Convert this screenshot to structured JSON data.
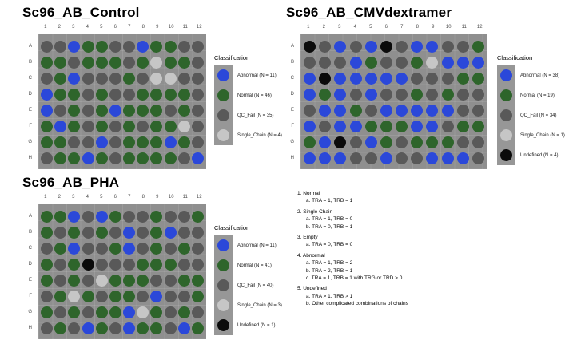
{
  "palette": {
    "abnormal": "#2b48d9",
    "normal": "#2e652b",
    "qc_fail": "#595959",
    "single_chain": "#c6c6c6",
    "undefined": "#0b0b0b",
    "plate_bg": "#8f8f8f",
    "legend_key_bg": "#979797"
  },
  "chart_data": {
    "type": "heatmap",
    "well_code_meaning": {
      "A": "Abnormal",
      "N": "Normal",
      "Q": "QC_Fail",
      "S": "Single_Chain",
      "U": "Undefined"
    },
    "plates": [
      {
        "title": "Sc96_AB_Control",
        "columns": [
          "1",
          "2",
          "3",
          "4",
          "5",
          "6",
          "7",
          "8",
          "9",
          "10",
          "11",
          "12"
        ],
        "rows": [
          "A",
          "B",
          "C",
          "D",
          "E",
          "F",
          "G",
          "H"
        ],
        "wells": [
          "QQANNQQANNQQ",
          "NNQNNNQNSNNQ",
          "QNAQQQNQSSQQ",
          "ANNQNQQNNNNQ",
          "AQNQNANNNQNQ",
          "NANQNQNQNNSQ",
          "NNQQAQNNNANQ",
          "QNNANQNNNNQA"
        ],
        "legend": {
          "title": "Classification",
          "items": [
            {
              "code": "A",
              "label": "Abnormal (N = 11)"
            },
            {
              "code": "N",
              "label": "Normal (N = 46)"
            },
            {
              "code": "Q",
              "label": "QC_Fail (N = 35)"
            },
            {
              "code": "S",
              "label": "Single_Chain (N = 4)"
            }
          ]
        }
      },
      {
        "title": "Sc96_AB_CMVdextramer",
        "columns": [
          "1",
          "2",
          "3",
          "4",
          "5",
          "6",
          "7",
          "8",
          "9",
          "10",
          "11",
          "12"
        ],
        "rows": [
          "A",
          "B",
          "C",
          "D",
          "E",
          "F",
          "G",
          "H"
        ],
        "wells": [
          "UQAQAUQAAQQN",
          "QQQANQQNSAAA",
          "AUAAAAAQQQNN",
          "ANAQAQQNQNQQ",
          "QAANQAAAAAQQ",
          "AQAANNNAAQNN",
          "NAUQANQNNNQQ",
          "AAAQQAQQAAAQ"
        ],
        "legend": {
          "title": "Classification",
          "items": [
            {
              "code": "A",
              "label": "Abnormal (N = 38)"
            },
            {
              "code": "N",
              "label": "Normal (N = 19)"
            },
            {
              "code": "Q",
              "label": "QC_Fail (N = 34)"
            },
            {
              "code": "S",
              "label": "Single_Chain (N = 1)"
            },
            {
              "code": "U",
              "label": "Undefined (N = 4)"
            }
          ]
        }
      },
      {
        "title": "Sc96_AB_PHA",
        "columns": [
          "1",
          "2",
          "3",
          "4",
          "5",
          "6",
          "7",
          "8",
          "9",
          "10",
          "11",
          "12"
        ],
        "rows": [
          "A",
          "B",
          "C",
          "D",
          "E",
          "F",
          "G",
          "H"
        ],
        "wells": [
          "NNAQANQQNQQN",
          "NQNQNQAQNAQQ",
          "QNAQQNAQNQNQ",
          "NQNUQQQNNNQQ",
          "NQNQSNNNQQNN",
          "QNSNQNNQAQQN",
          "NQNQNNASNQNQ",
          "QNQANQANNQAN"
        ],
        "legend": {
          "title": "Classification",
          "items": [
            {
              "code": "A",
              "label": "Abnormal (N = 11)"
            },
            {
              "code": "N",
              "label": "Normal (N = 41)"
            },
            {
              "code": "Q",
              "label": "QC_Fail (N = 40)"
            },
            {
              "code": "S",
              "label": "Single_Chain (N = 3)"
            },
            {
              "code": "U",
              "label": "Undefined (N = 1)"
            }
          ]
        }
      }
    ]
  },
  "notes": {
    "lines": [
      {
        "text": "1. Normal",
        "level": 0
      },
      {
        "text": "a. TRA = 1, TRB = 1",
        "level": 1
      },
      {
        "text": "2. Single Chain",
        "level": 0
      },
      {
        "text": "a. TRA = 1, TRB = 0",
        "level": 1
      },
      {
        "text": "b. TRA = 0, TRB = 1",
        "level": 1
      },
      {
        "text": "3. Empty",
        "level": 0
      },
      {
        "text": "a. TRA = 0, TRB = 0",
        "level": 1
      },
      {
        "text": "4. Abnormal",
        "level": 0
      },
      {
        "text": "a. TRA = 1, TRB = 2",
        "level": 1
      },
      {
        "text": "b. TRA = 2, TRB = 1",
        "level": 1
      },
      {
        "text": "c. TRA = 1, TRB = 1 with TRG or TRD > 0",
        "level": 1
      },
      {
        "text": "5. Undefined",
        "level": 0
      },
      {
        "text": "a. TRA > 1, TRB > 1",
        "level": 1
      },
      {
        "text": "b. Other complicated combinations of chains",
        "level": 1
      }
    ]
  }
}
